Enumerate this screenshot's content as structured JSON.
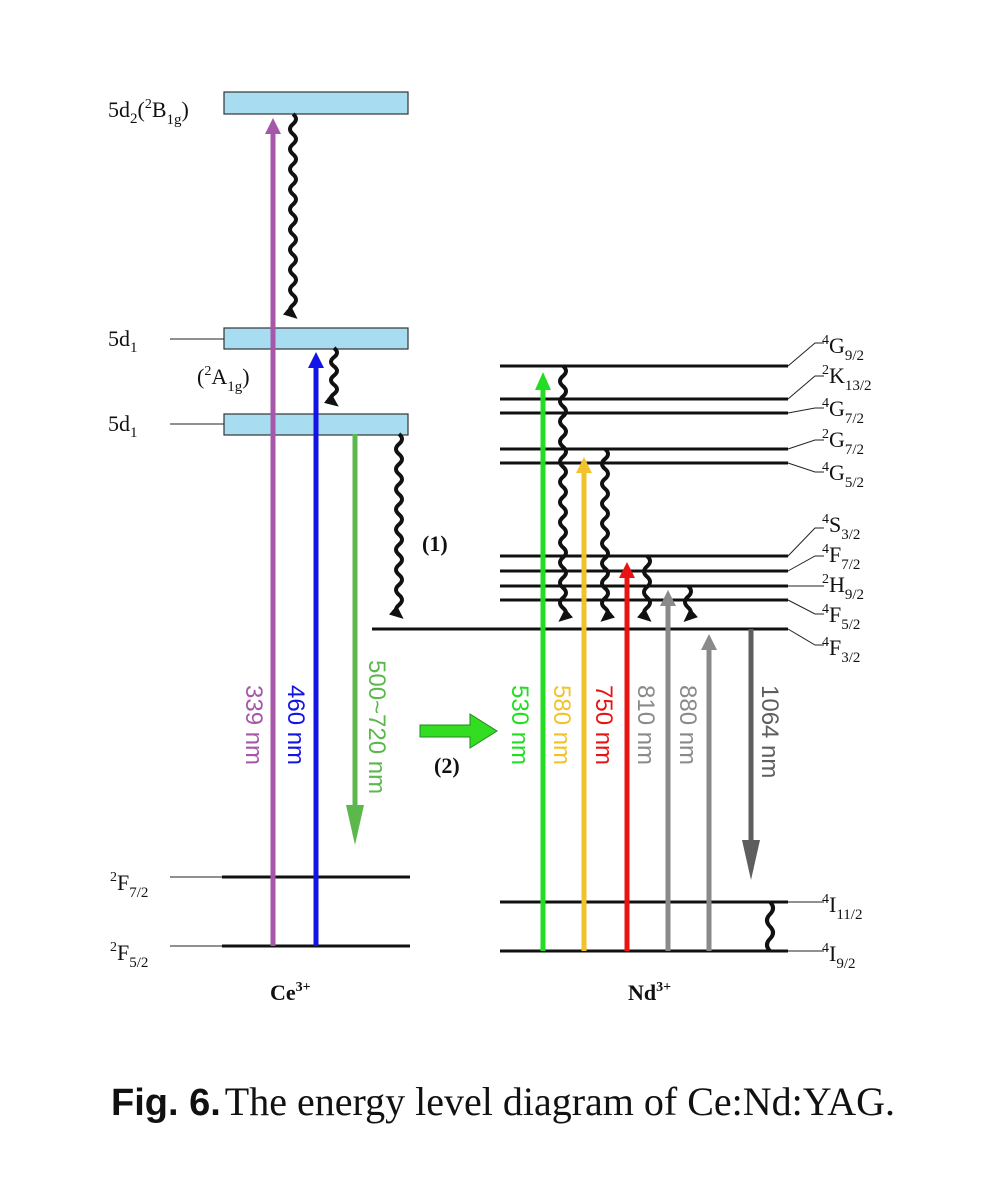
{
  "ce_ion": {
    "base": "Ce",
    "sup": "3+"
  },
  "nd_ion": {
    "base": "Nd",
    "sup": "3+"
  },
  "ce_levels": {
    "d2": {
      "a": "5d",
      "b": "2",
      "c": "(",
      "d": "2",
      "e": "B",
      "f": "1g",
      "g": ")"
    },
    "d1_upper": {
      "a": "5d",
      "b": "1"
    },
    "a1g": {
      "a": "(",
      "b": "2",
      "c": "A",
      "d": "1g",
      "e": ")"
    },
    "d1_lower": {
      "a": "5d",
      "b": "1"
    },
    "f72": {
      "a": "2",
      "b": "F",
      "c": "7/2"
    },
    "f52": {
      "a": "2",
      "b": "F",
      "c": "5/2"
    }
  },
  "nd_levels": {
    "g92": {
      "a": "4",
      "b": "G",
      "c": "9/2"
    },
    "k132": {
      "a": "2",
      "b": "K",
      "c": "13/2"
    },
    "g72a": {
      "a": "4",
      "b": "G",
      "c": "7/2"
    },
    "g72b": {
      "a": "2",
      "b": "G",
      "c": "7/2"
    },
    "g52": {
      "a": "4",
      "b": "G",
      "c": "5/2"
    },
    "s32": {
      "a": "4",
      "b": "S",
      "c": "3/2"
    },
    "f72": {
      "a": "4",
      "b": "F",
      "c": "7/2"
    },
    "h92": {
      "a": "2",
      "b": "H",
      "c": "9/2"
    },
    "f52": {
      "a": "4",
      "b": "F",
      "c": "5/2"
    },
    "f32": {
      "a": "4",
      "b": "F",
      "c": "3/2"
    },
    "i112": {
      "a": "4",
      "b": "I",
      "c": "11/2"
    },
    "i92": {
      "a": "4",
      "b": "I",
      "c": "9/2"
    }
  },
  "process_labels": {
    "p1": "(1)",
    "p2": "(2)"
  },
  "transitions": {
    "t339": {
      "label": "339 nm",
      "color": "#a757a9"
    },
    "t460": {
      "label": "460 nm",
      "color": "#1313e6"
    },
    "t500": {
      "label": "500~720 nm",
      "color": "#5cb84c"
    },
    "t530": {
      "label": "530 nm",
      "color": "#22dd22"
    },
    "t580": {
      "label": "580 nm",
      "color": "#f2c22b"
    },
    "t750": {
      "label": "750 nm",
      "color": "#e81414"
    },
    "t810": {
      "label": "810 nm",
      "color": "#8a8a8a"
    },
    "t880": {
      "label": "880 nm",
      "color": "#8a8a8a"
    },
    "t1064": {
      "label": "1064 nm",
      "color": "#5e5e5e"
    }
  },
  "caption": {
    "number": "Fig. 6.",
    "text": "The energy level diagram of Ce:Nd:YAG."
  }
}
